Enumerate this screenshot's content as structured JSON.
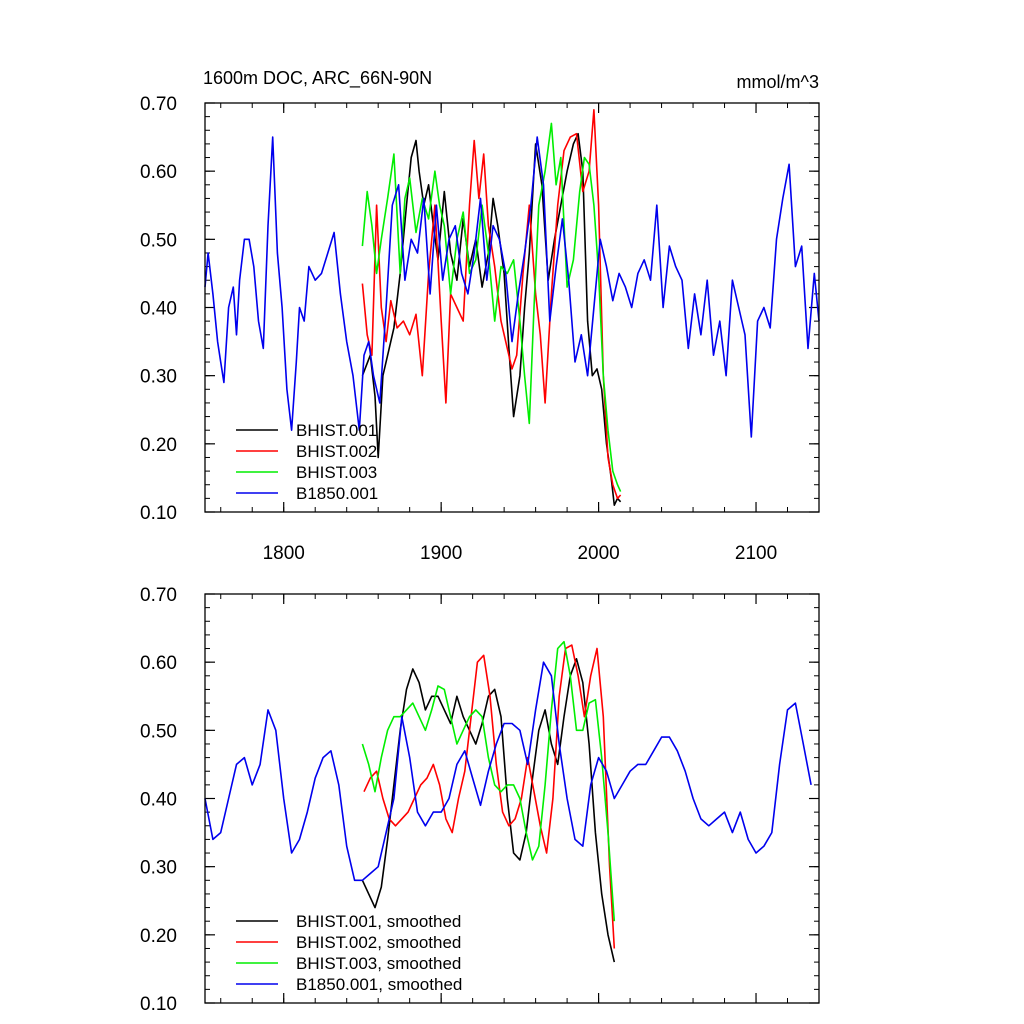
{
  "chart_data": [
    {
      "type": "line",
      "title": "1600m DOC, ARC_66N-90N",
      "units_label": "mmol/m^3",
      "xlim": [
        1750,
        2140
      ],
      "ylim": [
        0.1,
        0.7
      ],
      "xticks": [
        1800,
        1900,
        2000,
        2100
      ],
      "xtick_labels": [
        "1800",
        "1900",
        "2000",
        "2100"
      ],
      "yticks": [
        0.1,
        0.2,
        0.3,
        0.4,
        0.5,
        0.6,
        0.7
      ],
      "ytick_labels": [
        "0.10",
        "0.20",
        "0.30",
        "0.40",
        "0.50",
        "0.60",
        "0.70"
      ],
      "legend_position": "bottom-left",
      "series": [
        {
          "name": "BHIST.001",
          "color": "#000000",
          "x": [
            1850,
            1855,
            1858,
            1860,
            1863,
            1867,
            1870,
            1874,
            1878,
            1881,
            1884,
            1886,
            1889,
            1892,
            1895,
            1898,
            1902,
            1906,
            1910,
            1914,
            1918,
            1922,
            1926,
            1930,
            1933,
            1936,
            1940,
            1943,
            1946,
            1950,
            1953,
            1956,
            1960,
            1964,
            1968,
            1972,
            1976,
            1980,
            1984,
            1987,
            1990,
            1993,
            1996,
            1999,
            2002,
            2005,
            2008,
            2010,
            2012,
            2014
          ],
          "y": [
            0.3,
            0.33,
            0.27,
            0.18,
            0.3,
            0.34,
            0.37,
            0.45,
            0.55,
            0.62,
            0.645,
            0.6,
            0.55,
            0.58,
            0.52,
            0.47,
            0.57,
            0.48,
            0.44,
            0.53,
            0.46,
            0.5,
            0.43,
            0.48,
            0.56,
            0.52,
            0.45,
            0.34,
            0.24,
            0.3,
            0.4,
            0.48,
            0.64,
            0.58,
            0.44,
            0.5,
            0.55,
            0.6,
            0.64,
            0.655,
            0.6,
            0.38,
            0.3,
            0.31,
            0.28,
            0.2,
            0.15,
            0.11,
            0.12,
            0.115
          ]
        },
        {
          "name": "BHIST.002",
          "color": "#ff0000",
          "x": [
            1850,
            1853,
            1856,
            1859,
            1862,
            1865,
            1868,
            1872,
            1876,
            1880,
            1884,
            1888,
            1892,
            1896,
            1900,
            1903,
            1906,
            1910,
            1914,
            1918,
            1921,
            1924,
            1927,
            1930,
            1934,
            1938,
            1942,
            1945,
            1948,
            1952,
            1956,
            1960,
            1963,
            1966,
            1970,
            1974,
            1978,
            1982,
            1986,
            1990,
            1994,
            1997,
            2000,
            2003,
            2006,
            2009,
            2012,
            2014
          ],
          "y": [
            0.435,
            0.36,
            0.33,
            0.55,
            0.4,
            0.35,
            0.41,
            0.37,
            0.38,
            0.36,
            0.39,
            0.3,
            0.45,
            0.55,
            0.38,
            0.26,
            0.42,
            0.4,
            0.38,
            0.55,
            0.645,
            0.56,
            0.625,
            0.52,
            0.46,
            0.38,
            0.34,
            0.31,
            0.33,
            0.45,
            0.55,
            0.42,
            0.36,
            0.26,
            0.42,
            0.55,
            0.63,
            0.65,
            0.655,
            0.57,
            0.6,
            0.69,
            0.55,
            0.3,
            0.18,
            0.14,
            0.12,
            0.125
          ]
        },
        {
          "name": "BHIST.003",
          "color": "#00ee00",
          "x": [
            1850,
            1853,
            1856,
            1859,
            1862,
            1866,
            1870,
            1874,
            1877,
            1880,
            1884,
            1888,
            1892,
            1896,
            1899,
            1902,
            1906,
            1910,
            1914,
            1918,
            1922,
            1926,
            1930,
            1934,
            1938,
            1942,
            1946,
            1950,
            1953,
            1956,
            1959,
            1962,
            1966,
            1970,
            1973,
            1976,
            1980,
            1984,
            1988,
            1991,
            1994,
            1997,
            2000,
            2003,
            2006,
            2009,
            2012,
            2014
          ],
          "y": [
            0.49,
            0.57,
            0.52,
            0.45,
            0.5,
            0.56,
            0.625,
            0.45,
            0.56,
            0.59,
            0.51,
            0.56,
            0.53,
            0.6,
            0.55,
            0.52,
            0.42,
            0.5,
            0.54,
            0.45,
            0.47,
            0.55,
            0.48,
            0.38,
            0.46,
            0.45,
            0.47,
            0.38,
            0.3,
            0.23,
            0.4,
            0.55,
            0.6,
            0.67,
            0.58,
            0.62,
            0.43,
            0.47,
            0.57,
            0.62,
            0.61,
            0.55,
            0.45,
            0.3,
            0.22,
            0.16,
            0.14,
            0.13
          ]
        },
        {
          "name": "B1850.001",
          "color": "#0000ee",
          "x": [
            1750,
            1752,
            1755,
            1758,
            1760,
            1762,
            1765,
            1768,
            1770,
            1772,
            1775,
            1778,
            1781,
            1784,
            1787,
            1790,
            1793,
            1796,
            1799,
            1802,
            1805,
            1808,
            1810,
            1813,
            1816,
            1820,
            1824,
            1828,
            1832,
            1836,
            1840,
            1844,
            1848,
            1851,
            1854,
            1857,
            1861,
            1865,
            1869,
            1873,
            1877,
            1881,
            1885,
            1889,
            1893,
            1897,
            1901,
            1905,
            1909,
            1913,
            1917,
            1921,
            1925,
            1929,
            1933,
            1937,
            1941,
            1945,
            1949,
            1953,
            1957,
            1961,
            1965,
            1969,
            1973,
            1977,
            1981,
            1985,
            1989,
            1993,
            1997,
            2001,
            2005,
            2009,
            2013,
            2017,
            2021,
            2025,
            2029,
            2033,
            2037,
            2041,
            2045,
            2049,
            2053,
            2057,
            2061,
            2065,
            2069,
            2073,
            2077,
            2081,
            2085,
            2089,
            2093,
            2097,
            2101,
            2105,
            2109,
            2113,
            2117,
            2121,
            2125,
            2129,
            2133,
            2137,
            2140
          ],
          "y": [
            0.43,
            0.48,
            0.42,
            0.35,
            0.32,
            0.29,
            0.4,
            0.43,
            0.36,
            0.44,
            0.5,
            0.5,
            0.46,
            0.38,
            0.34,
            0.52,
            0.65,
            0.48,
            0.4,
            0.28,
            0.22,
            0.32,
            0.4,
            0.38,
            0.46,
            0.44,
            0.45,
            0.48,
            0.51,
            0.42,
            0.35,
            0.3,
            0.22,
            0.33,
            0.35,
            0.3,
            0.26,
            0.4,
            0.55,
            0.58,
            0.44,
            0.5,
            0.48,
            0.56,
            0.42,
            0.55,
            0.44,
            0.5,
            0.52,
            0.45,
            0.42,
            0.48,
            0.56,
            0.44,
            0.52,
            0.5,
            0.45,
            0.35,
            0.42,
            0.48,
            0.55,
            0.65,
            0.58,
            0.38,
            0.46,
            0.53,
            0.44,
            0.32,
            0.36,
            0.3,
            0.4,
            0.5,
            0.46,
            0.41,
            0.45,
            0.43,
            0.4,
            0.45,
            0.47,
            0.44,
            0.55,
            0.4,
            0.49,
            0.46,
            0.44,
            0.34,
            0.42,
            0.36,
            0.44,
            0.33,
            0.38,
            0.3,
            0.44,
            0.4,
            0.36,
            0.21,
            0.38,
            0.4,
            0.37,
            0.5,
            0.56,
            0.61,
            0.46,
            0.49,
            0.34,
            0.45,
            0.38
          ]
        }
      ]
    },
    {
      "type": "line",
      "xlim": [
        1750,
        2140
      ],
      "ylim": [
        0.1,
        0.7
      ],
      "xticks": [
        1800,
        1900,
        2000,
        2100
      ],
      "yticks": [
        0.1,
        0.2,
        0.3,
        0.4,
        0.5,
        0.6,
        0.7
      ],
      "ytick_labels": [
        "0.10",
        "0.20",
        "0.30",
        "0.40",
        "0.50",
        "0.60",
        "0.70"
      ],
      "legend_position": "bottom-left",
      "series": [
        {
          "name": "BHIST.001, smoothed",
          "color": "#000000",
          "x": [
            1850,
            1854,
            1858,
            1862,
            1866,
            1870,
            1874,
            1878,
            1882,
            1886,
            1890,
            1894,
            1898,
            1902,
            1906,
            1910,
            1914,
            1918,
            1922,
            1926,
            1930,
            1934,
            1938,
            1942,
            1946,
            1950,
            1954,
            1958,
            1962,
            1966,
            1970,
            1974,
            1978,
            1982,
            1986,
            1990,
            1994,
            1998,
            2002,
            2006,
            2010
          ],
          "y": [
            0.28,
            0.26,
            0.24,
            0.27,
            0.34,
            0.42,
            0.5,
            0.56,
            0.59,
            0.57,
            0.53,
            0.55,
            0.55,
            0.53,
            0.51,
            0.55,
            0.52,
            0.5,
            0.48,
            0.51,
            0.55,
            0.56,
            0.52,
            0.4,
            0.32,
            0.31,
            0.35,
            0.43,
            0.5,
            0.53,
            0.48,
            0.45,
            0.52,
            0.58,
            0.605,
            0.57,
            0.48,
            0.35,
            0.26,
            0.2,
            0.16
          ]
        },
        {
          "name": "BHIST.002, smoothed",
          "color": "#ff0000",
          "x": [
            1851,
            1855,
            1859,
            1863,
            1867,
            1871,
            1875,
            1879,
            1883,
            1887,
            1891,
            1895,
            1899,
            1903,
            1907,
            1911,
            1915,
            1919,
            1923,
            1927,
            1931,
            1935,
            1939,
            1943,
            1947,
            1951,
            1955,
            1959,
            1963,
            1967,
            1971,
            1975,
            1979,
            1983,
            1987,
            1991,
            1995,
            1999,
            2003,
            2007,
            2010
          ],
          "y": [
            0.41,
            0.43,
            0.44,
            0.4,
            0.37,
            0.36,
            0.37,
            0.38,
            0.4,
            0.42,
            0.43,
            0.45,
            0.42,
            0.37,
            0.35,
            0.4,
            0.44,
            0.52,
            0.6,
            0.61,
            0.55,
            0.45,
            0.38,
            0.36,
            0.37,
            0.4,
            0.46,
            0.41,
            0.36,
            0.32,
            0.4,
            0.55,
            0.62,
            0.625,
            0.58,
            0.52,
            0.58,
            0.62,
            0.52,
            0.3,
            0.18
          ]
        },
        {
          "name": "BHIST.003, smoothed",
          "color": "#00ee00",
          "x": [
            1850,
            1854,
            1858,
            1862,
            1866,
            1870,
            1874,
            1878,
            1882,
            1886,
            1890,
            1894,
            1898,
            1902,
            1906,
            1910,
            1914,
            1918,
            1922,
            1926,
            1930,
            1934,
            1938,
            1942,
            1946,
            1950,
            1954,
            1958,
            1962,
            1966,
            1970,
            1974,
            1978,
            1982,
            1986,
            1990,
            1994,
            1998,
            2002,
            2006,
            2010
          ],
          "y": [
            0.48,
            0.45,
            0.41,
            0.46,
            0.5,
            0.52,
            0.52,
            0.53,
            0.54,
            0.52,
            0.5,
            0.53,
            0.565,
            0.56,
            0.52,
            0.48,
            0.5,
            0.52,
            0.53,
            0.52,
            0.46,
            0.42,
            0.41,
            0.42,
            0.42,
            0.4,
            0.35,
            0.31,
            0.33,
            0.42,
            0.53,
            0.62,
            0.63,
            0.58,
            0.5,
            0.5,
            0.54,
            0.545,
            0.46,
            0.35,
            0.22
          ]
        },
        {
          "name": "B1850.001, smoothed",
          "color": "#0000ee",
          "x": [
            1750,
            1755,
            1760,
            1765,
            1770,
            1775,
            1780,
            1785,
            1790,
            1795,
            1800,
            1805,
            1810,
            1815,
            1820,
            1825,
            1830,
            1835,
            1840,
            1845,
            1850,
            1855,
            1860,
            1865,
            1870,
            1875,
            1880,
            1885,
            1890,
            1895,
            1900,
            1905,
            1910,
            1915,
            1920,
            1925,
            1930,
            1935,
            1940,
            1945,
            1950,
            1955,
            1960,
            1965,
            1970,
            1975,
            1980,
            1985,
            1990,
            1995,
            2000,
            2005,
            2010,
            2015,
            2020,
            2025,
            2030,
            2035,
            2040,
            2045,
            2050,
            2055,
            2060,
            2065,
            2070,
            2075,
            2080,
            2085,
            2090,
            2095,
            2100,
            2105,
            2110,
            2115,
            2120,
            2125,
            2130,
            2135
          ],
          "y": [
            0.4,
            0.34,
            0.35,
            0.4,
            0.45,
            0.46,
            0.42,
            0.45,
            0.53,
            0.5,
            0.4,
            0.32,
            0.34,
            0.38,
            0.43,
            0.46,
            0.47,
            0.42,
            0.33,
            0.28,
            0.28,
            0.29,
            0.3,
            0.35,
            0.4,
            0.52,
            0.46,
            0.38,
            0.36,
            0.38,
            0.38,
            0.4,
            0.45,
            0.47,
            0.43,
            0.39,
            0.44,
            0.48,
            0.51,
            0.51,
            0.5,
            0.45,
            0.53,
            0.6,
            0.58,
            0.48,
            0.4,
            0.34,
            0.33,
            0.42,
            0.46,
            0.44,
            0.4,
            0.42,
            0.44,
            0.45,
            0.45,
            0.47,
            0.49,
            0.49,
            0.47,
            0.44,
            0.4,
            0.37,
            0.36,
            0.37,
            0.38,
            0.35,
            0.38,
            0.34,
            0.32,
            0.33,
            0.35,
            0.45,
            0.53,
            0.54,
            0.48,
            0.42
          ]
        }
      ]
    }
  ]
}
